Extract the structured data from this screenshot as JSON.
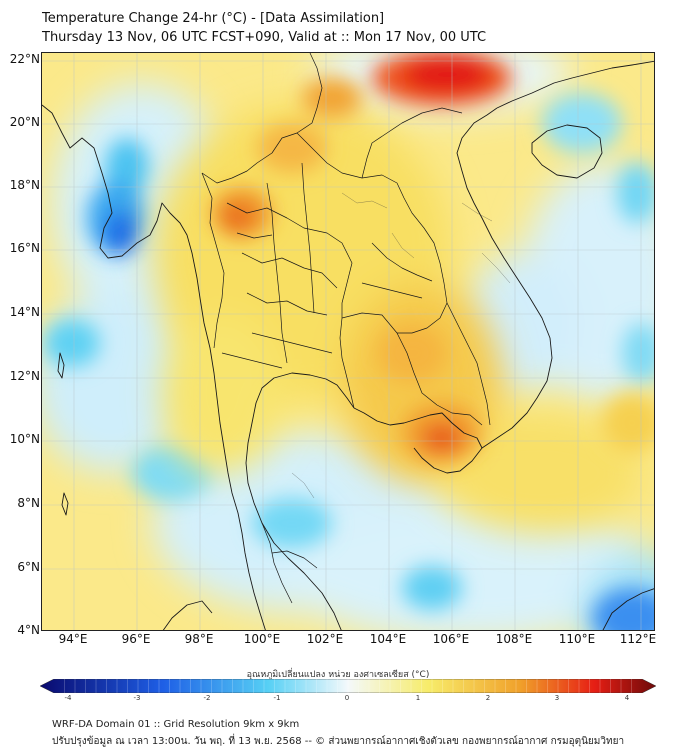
{
  "title": {
    "line1": "Temperature Change 24-hr (°C) - [Data Assimilation]",
    "line2": "Thursday 13 Nov, 06 UTC FCST+090, Valid at :: Mon 17 Nov, 00 UTC"
  },
  "axes": {
    "lat_labels": [
      "22°N",
      "20°N",
      "18°N",
      "16°N",
      "14°N",
      "12°N",
      "10°N",
      "8°N",
      "6°N",
      "4°N"
    ],
    "lon_labels": [
      "94°E",
      "96°E",
      "98°E",
      "100°E",
      "102°E",
      "104°E",
      "106°E",
      "108°E",
      "110°E",
      "112°E"
    ]
  },
  "colorbar": {
    "title": "อุณหภูมิเปลี่ยนแปลง หน่วย องศาเซลเซียส (°C)",
    "ticks": [
      "-4",
      "-3",
      "-2",
      "-1",
      "0",
      "1",
      "2",
      "3",
      "4"
    ],
    "colors": {
      "deep_blue": "#0a0a6e",
      "blue": "#1e5fe6",
      "light_blue": "#56d0f5",
      "white": "#f4f9fb",
      "yellow": "#f7ec6a",
      "orange": "#f0a02a",
      "red": "#e61e14",
      "dark_red": "#6e0a0a"
    }
  },
  "footer": {
    "line1": "WRF-DA Domain 01 :: Grid Resolution 9km x 9km",
    "line2": "ปรับปรุงข้อมูล ณ เวลา 13:00น. วัน พฤ. ที่ 13 พ.ย. 2568 -- © ส่วนพยากรณ์อากาศเชิงตัวเลข กองพยากรณ์อากาศ กรมอุตุนิยมวิทยา"
  }
}
